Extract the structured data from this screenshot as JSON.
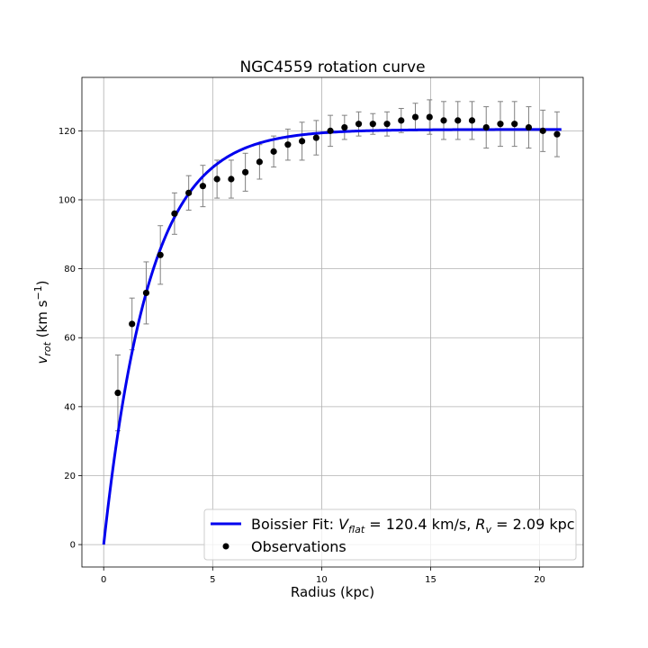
{
  "chart_data": {
    "type": "scatter",
    "title": "NGC4559 rotation curve",
    "xlabel": "Radius (kpc)",
    "ylabel_main": "v",
    "ylabel_sub": "rot",
    "ylabel_units_open": " (km s",
    "ylabel_units_sup": "−1",
    "ylabel_units_close": ")",
    "xlim": [
      -1.0,
      22.0
    ],
    "ylim": [
      -6.5,
      135.5
    ],
    "xticks": [
      0,
      5,
      10,
      15,
      20
    ],
    "yticks": [
      0,
      20,
      40,
      60,
      80,
      100,
      120
    ],
    "grid": true,
    "legend_position": "lower-right",
    "colors": {
      "fit_line": "#0000ee",
      "points": "#000000",
      "errorbars": "#808080"
    },
    "fit": {
      "name": "Boissier Fit: V_flat = 120.4 km/s, R_v = 2.09 kpc",
      "label_prefix": "Boissier Fit: ",
      "label_v": "V",
      "label_v_sub": "flat",
      "label_mid": " = 120.4 km/s, ",
      "label_r": "R",
      "label_r_sub": "v",
      "label_end": " = 2.09 kpc",
      "model": "vflat*(1-exp(-r/Rv))",
      "vflat": 120.4,
      "rv": 2.09,
      "x_start": 0,
      "x_end": 21.0
    },
    "observations": {
      "name": "Observations",
      "x": [
        0.65,
        1.3,
        1.95,
        2.6,
        3.25,
        3.9,
        4.55,
        5.2,
        5.85,
        6.5,
        7.15,
        7.8,
        8.45,
        9.1,
        9.75,
        10.4,
        11.05,
        11.7,
        12.35,
        13.0,
        13.65,
        14.3,
        14.95,
        15.6,
        16.25,
        16.9,
        17.55,
        18.2,
        18.85,
        19.5,
        20.15,
        20.8
      ],
      "y": [
        44,
        64,
        73,
        84,
        96,
        102,
        104,
        106,
        106,
        108,
        111,
        114,
        116,
        117,
        118,
        120,
        121,
        122,
        122,
        122,
        123,
        124,
        124,
        123,
        123,
        123,
        121,
        122,
        122,
        121,
        120,
        119
      ],
      "yerr": [
        11,
        7.5,
        9,
        8.5,
        6,
        5,
        6,
        5.5,
        5.5,
        5.5,
        5,
        4.5,
        4.5,
        5.5,
        5,
        4.5,
        3.5,
        3.5,
        3,
        3.5,
        3.5,
        4,
        5,
        5.5,
        5.5,
        5.5,
        6,
        6.5,
        6.5,
        6,
        6,
        6.5
      ]
    }
  }
}
